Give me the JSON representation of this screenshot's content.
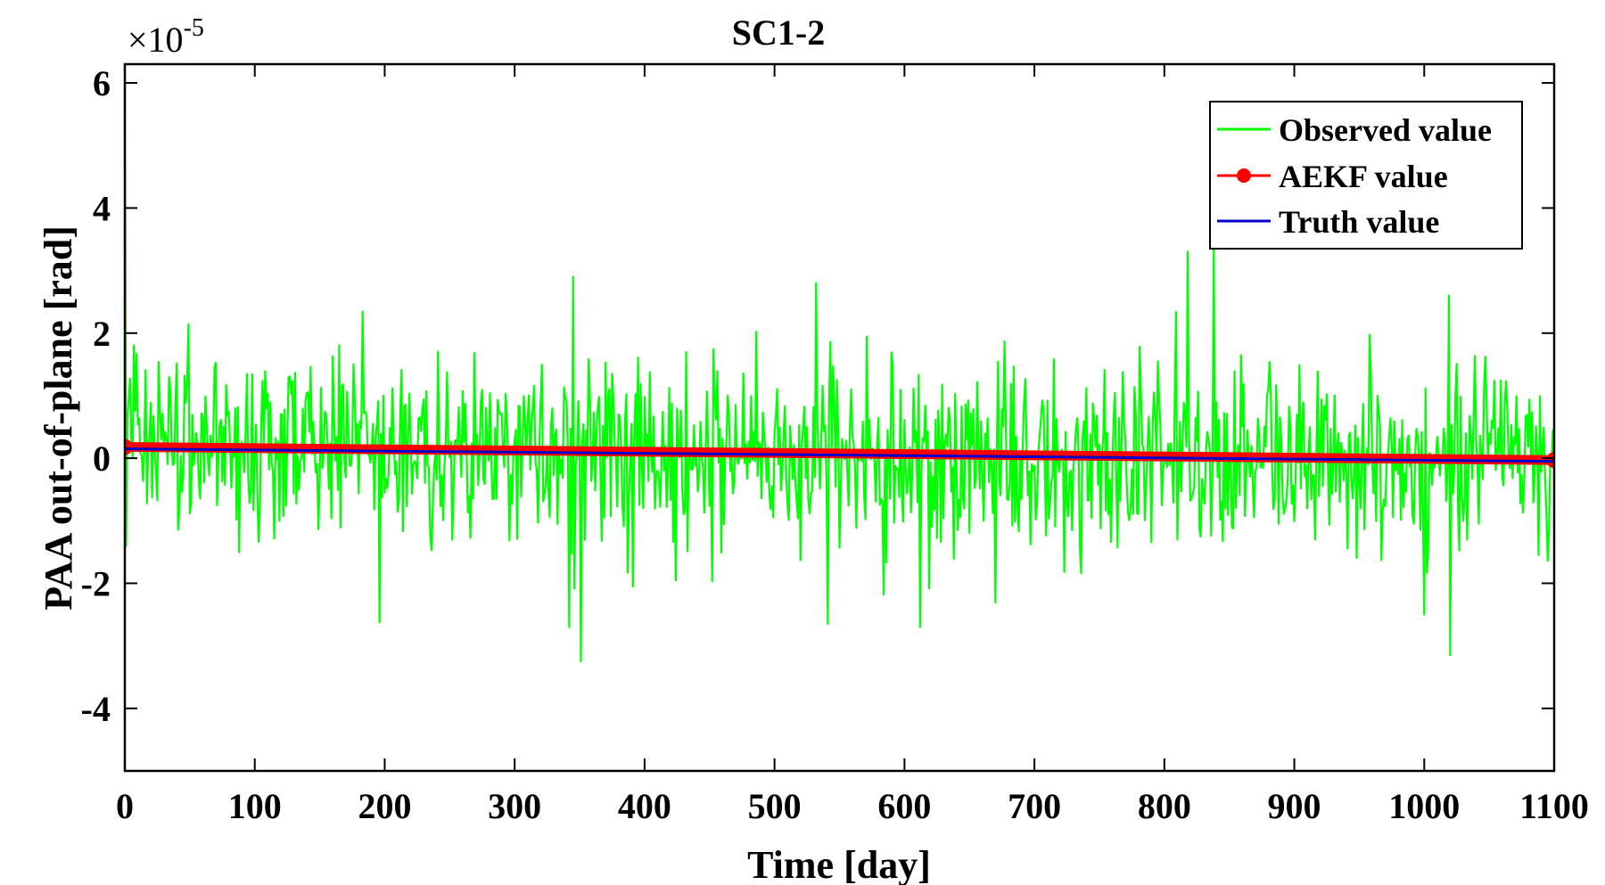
{
  "chart_data": {
    "type": "line",
    "title": "SC1-2",
    "xlabel": "Time [day]",
    "ylabel": "PAA out-of-plane [rad]",
    "y_multiplier_label": "×10",
    "y_multiplier_exponent": "-5",
    "xlim": [
      0,
      1100
    ],
    "ylim": [
      -5,
      6.3
    ],
    "x_ticks": [
      0,
      100,
      200,
      300,
      400,
      500,
      600,
      700,
      800,
      900,
      1000,
      1100
    ],
    "x_tick_labels": [
      "0",
      "100",
      "200",
      "300",
      "400",
      "500",
      "600",
      "700",
      "800",
      "900",
      "1000",
      "1100"
    ],
    "y_ticks": [
      -4,
      -2,
      0,
      2,
      4,
      6
    ],
    "y_tick_labels": [
      "-4",
      "-2",
      "0",
      "2",
      "4",
      "6"
    ],
    "legend_position": "top-right",
    "grid": false,
    "series": [
      {
        "name": "Observed value",
        "color": "#00ff00",
        "kind": "noise",
        "x_range": [
          0,
          1100
        ],
        "n_points": 1100,
        "mean_start": 0.2,
        "mean_end": -0.05,
        "std": 0.75,
        "initial_value": 6.3,
        "peaks": [
          {
            "x": 838,
            "y": 3.4
          },
          {
            "x": 818,
            "y": 3.3
          },
          {
            "x": 345,
            "y": 2.9
          },
          {
            "x": 532,
            "y": 2.8
          },
          {
            "x": 1019,
            "y": 2.6
          },
          {
            "x": 351,
            "y": -3.25
          },
          {
            "x": 1020,
            "y": -3.15
          },
          {
            "x": 342,
            "y": -2.7
          },
          {
            "x": 612,
            "y": -2.7
          },
          {
            "x": 541,
            "y": -2.65
          },
          {
            "x": 1000,
            "y": -2.5
          }
        ]
      },
      {
        "name": "AEKF value",
        "color": "#ff0000",
        "marker": "circle",
        "x": [
          0,
          1100
        ],
        "y": [
          0.18,
          -0.03
        ]
      },
      {
        "name": "Truth value",
        "color": "#0000cc",
        "x": [
          0,
          1100
        ],
        "y": [
          0.15,
          -0.05
        ]
      }
    ]
  }
}
